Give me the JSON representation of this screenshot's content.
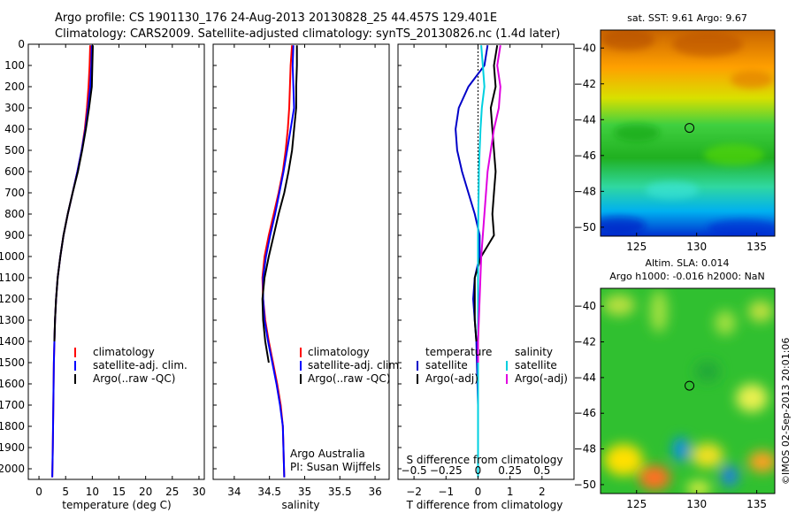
{
  "header": {
    "title_line1": "Argo profile: CS 1901130_176 24-Aug-2013 20130828_25 44.457S 129.401E",
    "title_line2": "Climatology: CARS2009. Satellite-adjusted climatology: synTS_20130826.nc (1.4d later)"
  },
  "chart_data": [
    {
      "id": "temperature",
      "type": "line",
      "xlabel": "temperature (deg C)",
      "ylabel": "",
      "xlim": [
        -2,
        31
      ],
      "ylim": [
        0,
        2050
      ],
      "y_reversed": true,
      "xticks": [
        0,
        5,
        10,
        15,
        20,
        25,
        30
      ],
      "yticks": [
        0,
        100,
        200,
        300,
        400,
        500,
        600,
        700,
        800,
        900,
        1000,
        1100,
        1200,
        1300,
        1400,
        1500,
        1600,
        1700,
        1800,
        1900,
        2000
      ],
      "legend": {
        "position": "lower-center",
        "entries": [
          "climatology",
          "satellite-adj. clim.",
          "Argo(..raw -QC)"
        ]
      },
      "series": [
        {
          "name": "climatology",
          "color": "#ff0000",
          "x": [
            9.6,
            9.5,
            9.3,
            9.0,
            8.6,
            8.0,
            7.2,
            6.3,
            5.4,
            4.6,
            4.0,
            3.5,
            3.2,
            3.0,
            2.9,
            2.8,
            2.7,
            2.6,
            2.5
          ],
          "y": [
            5,
            100,
            200,
            300,
            400,
            500,
            600,
            700,
            800,
            900,
            1000,
            1100,
            1200,
            1300,
            1400,
            1500,
            1700,
            1900,
            2040
          ]
        },
        {
          "name": "satellite-adj. clim.",
          "color": "#0000ff",
          "x": [
            9.9,
            9.8,
            9.6,
            9.2,
            8.7,
            8.0,
            7.2,
            6.3,
            5.4,
            4.6,
            4.0,
            3.5,
            3.2,
            3.0,
            2.9,
            2.8,
            2.7,
            2.6,
            2.5
          ],
          "y": [
            5,
            100,
            200,
            300,
            400,
            500,
            600,
            700,
            800,
            900,
            1000,
            1100,
            1200,
            1300,
            1400,
            1500,
            1700,
            1900,
            2040
          ]
        },
        {
          "name": "Argo(..raw -QC)",
          "color": "#000000",
          "x": [
            10.1,
            10.0,
            9.9,
            9.4,
            8.8,
            8.1,
            7.3,
            6.3,
            5.4,
            4.6,
            4.0,
            3.5,
            3.2,
            3.0,
            2.9
          ],
          "y": [
            5,
            100,
            200,
            300,
            400,
            500,
            600,
            700,
            800,
            900,
            1000,
            1100,
            1200,
            1300,
            1400
          ]
        }
      ]
    },
    {
      "id": "salinity",
      "type": "line",
      "xlabel": "salinity",
      "xlim": [
        33.7,
        36.2
      ],
      "ylim": [
        0,
        2050
      ],
      "y_reversed": true,
      "xticks": [
        34,
        34.5,
        35,
        35.5,
        36
      ],
      "xticklabels": [
        "34",
        "34.5",
        "35",
        "35.5",
        "36"
      ],
      "legend": {
        "position": "lower-center",
        "entries": [
          "climatology",
          "satellite-adj. clim.",
          "Argo(..raw -QC)"
        ]
      },
      "annotation": {
        "line1": "Argo Australia",
        "line2": "PI: Susan Wijffels"
      },
      "series": [
        {
          "name": "climatology",
          "color": "#ff0000",
          "x": [
            34.82,
            34.8,
            34.79,
            34.78,
            34.76,
            34.73,
            34.69,
            34.63,
            34.56,
            34.49,
            34.43,
            34.4,
            34.41,
            34.44,
            34.49,
            34.55,
            34.61,
            34.66,
            34.69,
            34.71
          ],
          "y": [
            5,
            100,
            200,
            300,
            400,
            500,
            600,
            700,
            800,
            900,
            1000,
            1100,
            1200,
            1300,
            1400,
            1500,
            1600,
            1700,
            1800,
            2040
          ]
        },
        {
          "name": "satellite-adj. clim.",
          "color": "#0000ff",
          "x": [
            34.84,
            34.83,
            34.84,
            34.85,
            34.8,
            34.75,
            34.7,
            34.64,
            34.58,
            34.51,
            34.45,
            34.41,
            34.41,
            34.43,
            34.48,
            34.54,
            34.6,
            34.65,
            34.69,
            34.71
          ],
          "y": [
            5,
            100,
            200,
            300,
            400,
            500,
            600,
            700,
            800,
            900,
            1000,
            1100,
            1200,
            1300,
            1400,
            1500,
            1600,
            1700,
            1800,
            2040
          ]
        },
        {
          "name": "Argo(..raw -QC)",
          "color": "#000000",
          "x": [
            34.89,
            34.89,
            34.88,
            34.88,
            34.85,
            34.82,
            34.77,
            34.71,
            34.63,
            34.56,
            34.49,
            34.43,
            34.4,
            34.41,
            34.44,
            34.49
          ],
          "y": [
            5,
            100,
            200,
            300,
            400,
            500,
            600,
            700,
            800,
            900,
            1000,
            1100,
            1200,
            1300,
            1400,
            1500
          ]
        }
      ]
    },
    {
      "id": "difference",
      "type": "line",
      "xlabel": "T difference from climatology",
      "secondary_xlabel": "S difference from climatology",
      "xlim": [
        -2.5,
        3
      ],
      "ylim": [
        0,
        2050
      ],
      "y_reversed": true,
      "xticks": [
        -2,
        -1,
        0,
        1,
        2
      ],
      "xticklabels": [
        "−2",
        "−1",
        "0",
        "1",
        "2"
      ],
      "secondary_xticks": [
        -0.5,
        -0.25,
        0,
        0.25,
        0.5
      ],
      "secondary_xticklabels": [
        "−0.5",
        "−0.25",
        "0",
        "0.25",
        "0.5"
      ],
      "zero_line": true,
      "legend": {
        "position": "lower-center",
        "heading_left": "temperature",
        "heading_right": "salinity",
        "entries": [
          "satellite",
          "Argo(-adj)",
          "satellite",
          "Argo(-adj)"
        ]
      },
      "series": [
        {
          "name": "satellite",
          "variable": "temperature",
          "color": "#0000c8",
          "x": [
            0.3,
            0.2,
            -0.3,
            -0.6,
            -0.7,
            -0.65,
            -0.5,
            -0.3,
            -0.1,
            0.05,
            0.05,
            -0.1,
            -0.15,
            -0.1,
            -0.05,
            0,
            0
          ],
          "y": [
            5,
            100,
            200,
            300,
            400,
            500,
            600,
            700,
            800,
            900,
            1000,
            1100,
            1200,
            1300,
            1400,
            1700,
            2040
          ]
        },
        {
          "name": "Argo(-adj)",
          "variable": "temperature",
          "color": "#000000",
          "x": [
            0.6,
            0.5,
            0.55,
            0.4,
            0.45,
            0.5,
            0.55,
            0.5,
            0.45,
            0.5,
            0.1,
            -0.1,
            -0.1,
            -0.1,
            -0.05
          ],
          "y": [
            5,
            100,
            200,
            300,
            400,
            500,
            600,
            700,
            800,
            900,
            1000,
            1100,
            1200,
            1300,
            1400
          ]
        },
        {
          "name": "satellite",
          "variable": "salinity",
          "color": "#00d0e0",
          "x": [
            0.1,
            0.15,
            0.2,
            0.12,
            0.08,
            0.05,
            0.03,
            0.02,
            0.01,
            0,
            0,
            0,
            0,
            0,
            0
          ],
          "y": [
            5,
            100,
            200,
            300,
            400,
            500,
            600,
            700,
            800,
            900,
            1100,
            1300,
            1500,
            1800,
            2040
          ]
        },
        {
          "name": "Argo(-adj)",
          "variable": "salinity",
          "color": "#e000e0",
          "x": [
            0.7,
            0.6,
            0.7,
            0.65,
            0.5,
            0.4,
            0.3,
            0.2,
            0.1,
            0.05,
            0,
            0
          ],
          "y": [
            5,
            100,
            200,
            300,
            400,
            500,
            600,
            800,
            1000,
            1200,
            1400,
            1500
          ]
        }
      ]
    },
    {
      "id": "sst_map",
      "type": "heatmap",
      "title": "sat. SST: 9.61  Argo: 9.67",
      "xlim": [
        122,
        136.5
      ],
      "ylim": [
        -50.5,
        -39
      ],
      "xticks": [
        125,
        130,
        135
      ],
      "yticks": [
        -40,
        -42,
        -44,
        -46,
        -48,
        -50
      ],
      "marker": {
        "lon": 129.401,
        "lat": -44.457
      }
    },
    {
      "id": "sla_map",
      "type": "heatmap",
      "title": "Altim. SLA: 0.014",
      "subtitle": "Argo h1000: -0.016 h2000: NaN",
      "xlim": [
        122,
        136.5
      ],
      "ylim": [
        -50.5,
        -39
      ],
      "xticks": [
        125,
        130,
        135
      ],
      "yticks": [
        -40,
        -42,
        -44,
        -46,
        -48,
        -50
      ],
      "marker": {
        "lon": 129.401,
        "lat": -44.457
      }
    }
  ],
  "credit": "©IMOS 02-Sep-2013 20:01:06"
}
